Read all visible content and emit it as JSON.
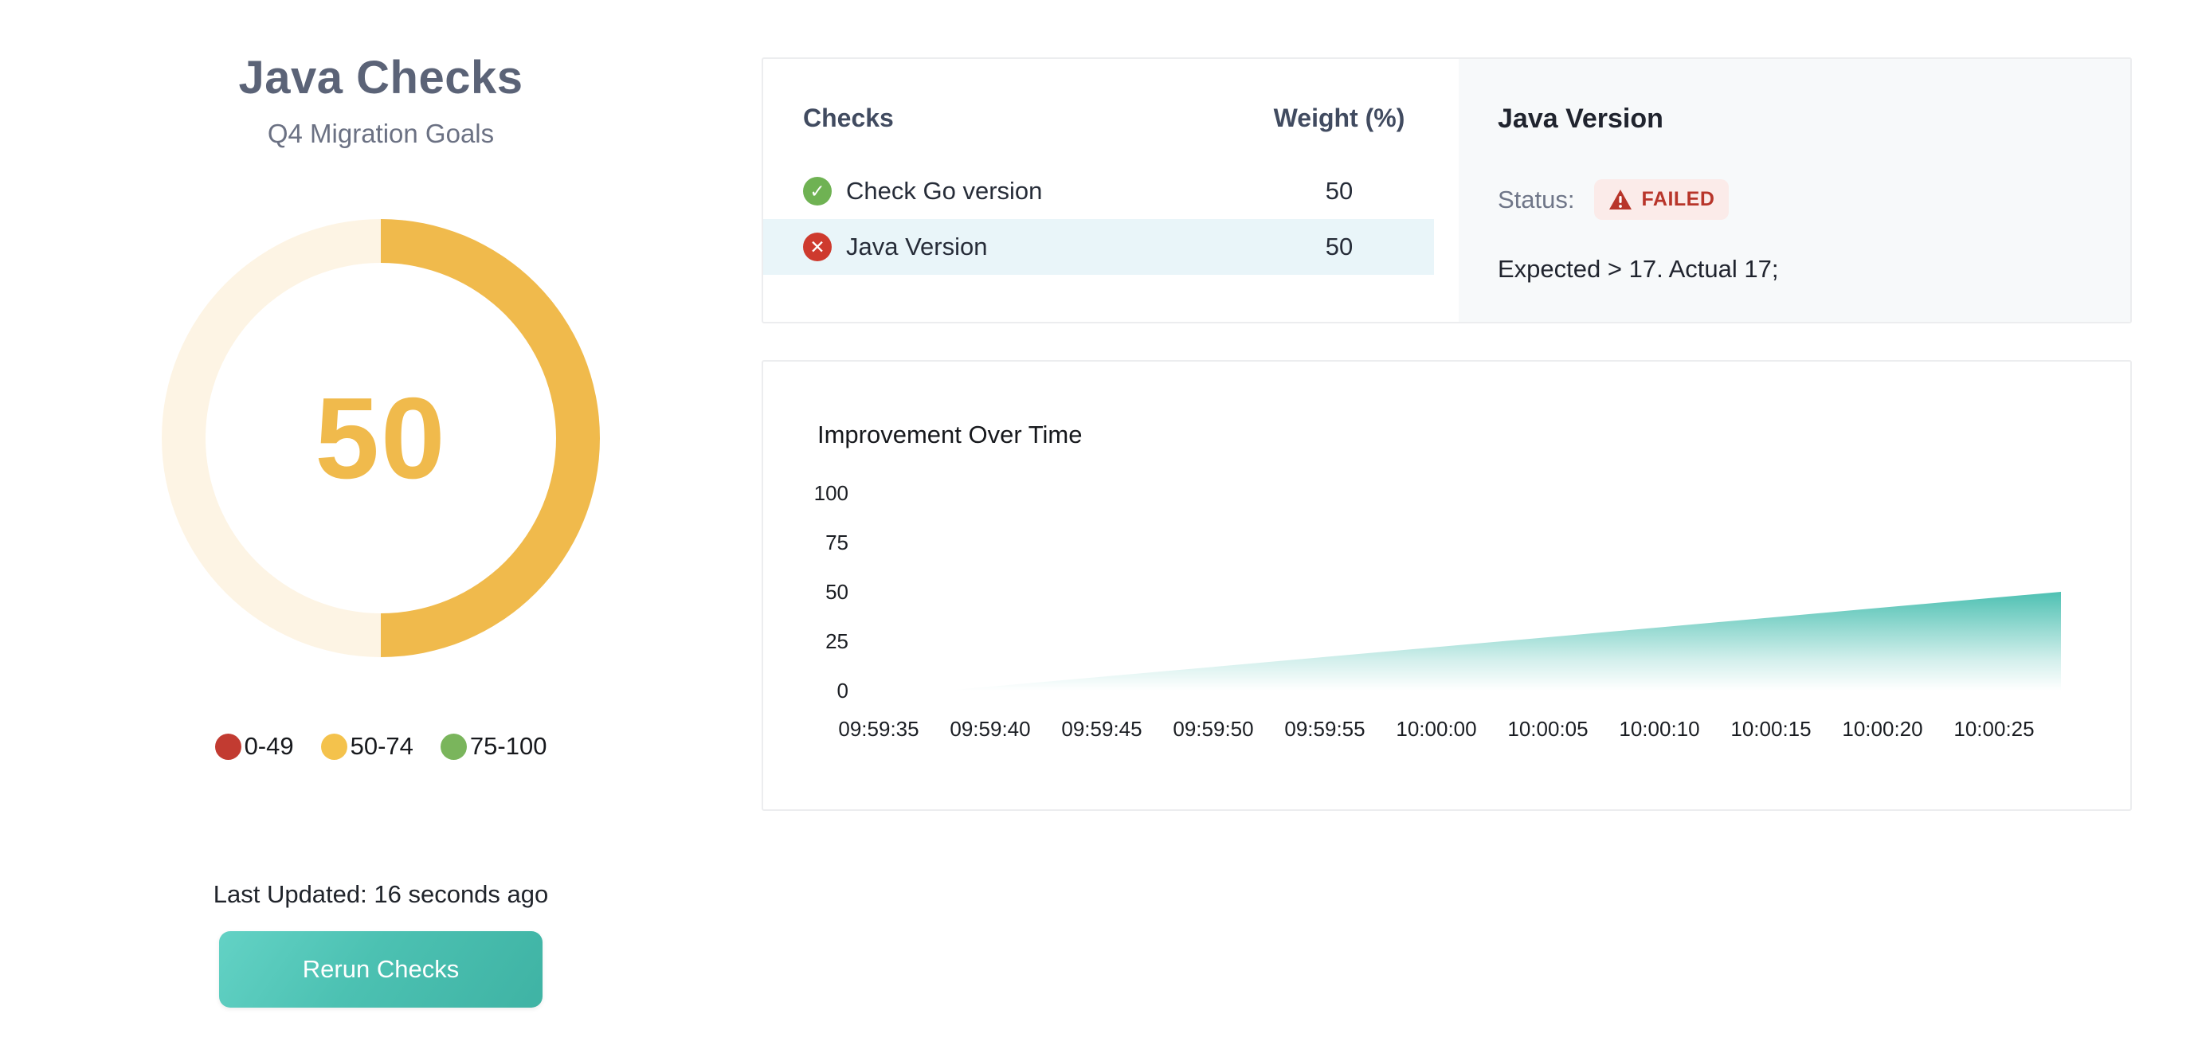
{
  "page": {
    "title": "Java Checks",
    "subtitle": "Q4 Migration Goals"
  },
  "gauge": {
    "value": 50,
    "max": 100,
    "value_label": "50",
    "fill_color": "#f0ba4c",
    "track_color": "#fdf4e4",
    "legend": [
      {
        "label": "0-49",
        "color": "#c23b31"
      },
      {
        "label": "50-74",
        "color": "#f4c24c"
      },
      {
        "label": "75-100",
        "color": "#7ab55c"
      }
    ]
  },
  "footer": {
    "last_updated": "Last Updated: 16 seconds ago",
    "rerun_label": "Rerun Checks"
  },
  "checks_table": {
    "header_checks": "Checks",
    "header_weight": "Weight (%)",
    "rows": [
      {
        "name": "Check Go version",
        "weight": "50",
        "status": "passed",
        "icon": "check-circle",
        "icon_color": "#6fb253"
      },
      {
        "name": "Java Version",
        "weight": "50",
        "status": "failed",
        "icon": "x-circle",
        "icon_color": "#ce3a2e"
      }
    ]
  },
  "detail_panel": {
    "title": "Java Version",
    "status_label": "Status:",
    "badge_label": "FAILED",
    "badge_bg": "#fbebe9",
    "badge_text_color": "#b8352a",
    "message": "Expected > 17. Actual 17;"
  },
  "chart_data": [
    {
      "type": "pie",
      "subtype": "donut-gauge",
      "title": "Java Checks score",
      "center_label": "50",
      "slices": [
        {
          "label": "score",
          "value": 50,
          "color": "#f0ba4c"
        },
        {
          "label": "remaining",
          "value": 50,
          "color": "#fdf4e4"
        }
      ],
      "legend_ranges": [
        "0-49",
        "50-74",
        "75-100"
      ],
      "legend_colors": [
        "#c23b31",
        "#f4c24c",
        "#7ab55c"
      ]
    },
    {
      "type": "area",
      "title": "Improvement Over Time",
      "x": [
        "09:59:38",
        "09:59:40",
        "09:59:45",
        "09:59:50",
        "09:59:55",
        "10:00:00",
        "10:00:05",
        "10:00:10",
        "10:00:15",
        "10:00:20",
        "10:00:25",
        "10:00:28"
      ],
      "y": [
        0,
        2,
        7,
        12,
        17,
        22,
        27,
        32,
        37,
        42,
        47,
        50
      ],
      "x_ticks": [
        "09:59:35",
        "09:59:40",
        "09:59:45",
        "09:59:50",
        "09:59:55",
        "10:00:00",
        "10:00:05",
        "10:00:10",
        "10:00:15",
        "10:00:20",
        "10:00:25"
      ],
      "y_ticks": [
        0,
        25,
        50,
        75,
        100
      ],
      "ylim": [
        0,
        100
      ],
      "xlabel": "",
      "ylabel": "",
      "grid": false,
      "legend_position": "none",
      "fill_gradient": [
        "#3fbbac",
        "transparent"
      ]
    }
  ]
}
